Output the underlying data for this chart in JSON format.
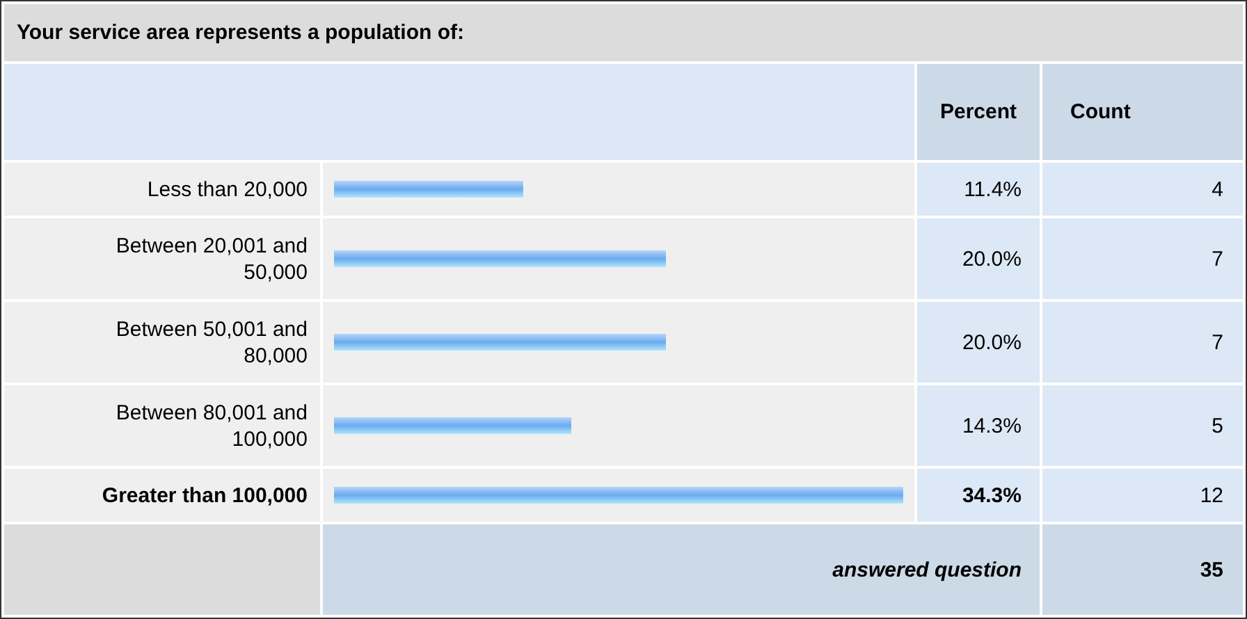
{
  "chart_data": {
    "type": "bar",
    "orientation": "horizontal",
    "title": "Your service area represents a population of:",
    "categories": [
      "Less than 20,000",
      "Between 20,001 and 50,000",
      "Between 50,001 and 80,000",
      "Between 80,001 and 100,000",
      "Greater than 100,000"
    ],
    "values": [
      11.4,
      20.0,
      20.0,
      14.3,
      34.3
    ],
    "value_labels": [
      "11.4%",
      "20.0%",
      "20.0%",
      "14.3%",
      "34.3%"
    ],
    "color": "#6aaaf0",
    "annotations": [
      "Percent",
      "Count",
      "4",
      "7",
      "7",
      "5",
      "12",
      "answered question",
      "35"
    ]
  }
}
